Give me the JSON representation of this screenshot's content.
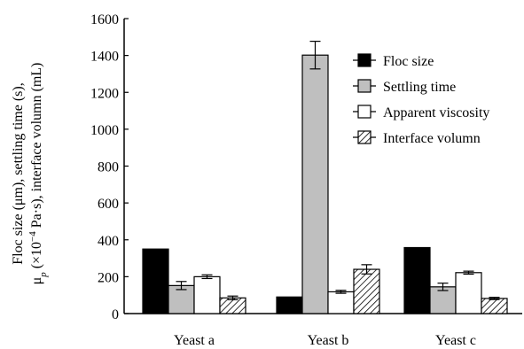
{
  "chart_data": {
    "type": "bar",
    "categories": [
      "Yeast a",
      "Yeast b",
      "Yeast c"
    ],
    "series": [
      {
        "name": "Floc size",
        "values": [
          350,
          90,
          358
        ],
        "errors": [
          0,
          0,
          0
        ],
        "color": "#000000",
        "pattern": "solid"
      },
      {
        "name": "Settling time",
        "values": [
          152,
          1402,
          145
        ],
        "errors": [
          22,
          75,
          20
        ],
        "color": "#bfbfbf",
        "pattern": "solid"
      },
      {
        "name": "Apparent viscosity",
        "values": [
          200,
          118,
          222
        ],
        "errors": [
          10,
          8,
          8
        ],
        "color": "#ffffff",
        "pattern": "solid"
      },
      {
        "name": "Interface volumn",
        "values": [
          85,
          240,
          82
        ],
        "errors": [
          10,
          25,
          6
        ],
        "color": "#ffffff",
        "pattern": "hatched"
      }
    ],
    "ylim": [
      0,
      1600
    ],
    "yticks": [
      0,
      200,
      400,
      600,
      800,
      1000,
      1200,
      1400,
      1600
    ],
    "ylabel_line1": "Floc size (μm), settling time (s),",
    "ylabel_line2_prefix": "μ",
    "ylabel_line2_sub": "p",
    "ylabel_line2_mid": " (×10",
    "ylabel_line2_sup": "−4",
    "ylabel_line2_suffix": " Pa·s), interface volumn (mL)",
    "xlabel": "",
    "title": "",
    "legend_position": "top-right",
    "grid": false
  }
}
